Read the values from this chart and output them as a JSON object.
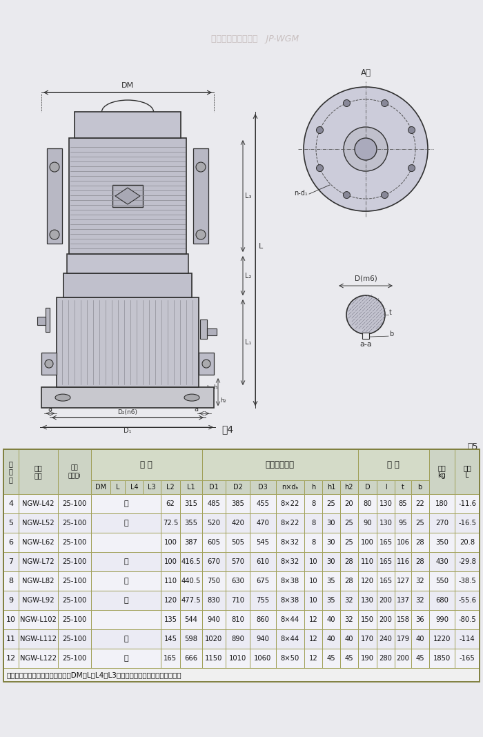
{
  "fig_bg": "#e8e8ec",
  "draw_bg": "#eaeaee",
  "table_bg": "#eaeaee",
  "rows": [
    [
      "4",
      "NGW-L42",
      "25-100",
      "接",
      "62",
      "315",
      "485",
      "385",
      "455",
      "8×22",
      "8",
      "25",
      "20",
      "80",
      "130",
      "85",
      "22",
      "180",
      "-11.6"
    ],
    [
      "5",
      "NGW-L52",
      "25-100",
      "所",
      "72.5",
      "355",
      "520",
      "420",
      "470",
      "8×22",
      "8",
      "30",
      "25",
      "90",
      "130",
      "95",
      "25",
      "270",
      "-16.5"
    ],
    [
      "6",
      "NGW-L62",
      "25-100",
      "",
      "100",
      "387",
      "605",
      "505",
      "545",
      "8×32",
      "8",
      "30",
      "25",
      "100",
      "165",
      "106",
      "28",
      "350",
      "20.8"
    ],
    [
      "7",
      "NGW-L72",
      "25-100",
      "配",
      "100",
      "416.5",
      "670",
      "570",
      "610",
      "8×32",
      "10",
      "30",
      "28",
      "110",
      "165",
      "116",
      "28",
      "430",
      "-29.8"
    ],
    [
      "8",
      "NGW-L82",
      "25-100",
      "电",
      "110",
      "440.5",
      "750",
      "630",
      "675",
      "8×38",
      "10",
      "35",
      "28",
      "120",
      "165",
      "127",
      "32",
      "550",
      "-38.5"
    ],
    [
      "9",
      "NGW-L92",
      "25-100",
      "机",
      "120",
      "477.5",
      "830",
      "710",
      "755",
      "8×38",
      "10",
      "35",
      "32",
      "130",
      "200",
      "137",
      "32",
      "680",
      "-55.6"
    ],
    [
      "10",
      "NGW-L102",
      "25-100",
      "",
      "135",
      "544",
      "940",
      "810",
      "860",
      "8×44",
      "12",
      "40",
      "32",
      "150",
      "200",
      "158",
      "36",
      "990",
      "-80.5"
    ],
    [
      "11",
      "NGW-L112",
      "25-100",
      "确",
      "145",
      "598",
      "1020",
      "890",
      "940",
      "8×44",
      "12",
      "40",
      "40",
      "170",
      "240",
      "179",
      "40",
      "1220",
      "-114"
    ],
    [
      "12",
      "NGW-L122",
      "25-100",
      "定",
      "165",
      "666",
      "1150",
      "1010",
      "1060",
      "8×50",
      "12",
      "45",
      "45",
      "190",
      "280",
      "200",
      "45",
      "1850",
      "-165"
    ]
  ],
  "note": "注：所配电机型号规格确定后再定DM、L、L4及L3之尺寸。表中重量不包括电机重量"
}
